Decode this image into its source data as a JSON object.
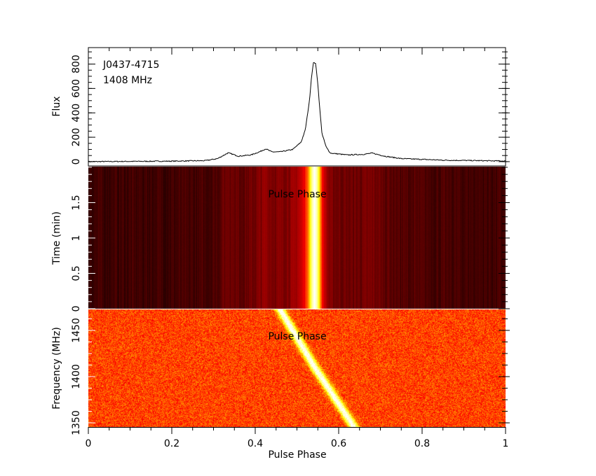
{
  "chart_data": [
    {
      "type": "line",
      "panel": "profile",
      "title": "J0437-4715",
      "subtitle": "1408 MHz",
      "xlabel": "Pulse Phase",
      "ylabel": "Flux",
      "xlim": [
        0,
        1
      ],
      "ylim": [
        -35,
        935
      ],
      "yticks": [
        "0",
        "200",
        "400",
        "600",
        "800"
      ],
      "ytick_values": [
        0,
        200,
        400,
        600,
        800
      ],
      "x": [
        0,
        0.1,
        0.2,
        0.28,
        0.31,
        0.335,
        0.36,
        0.39,
        0.41,
        0.425,
        0.44,
        0.46,
        0.49,
        0.51,
        0.52,
        0.53,
        0.535,
        0.54,
        0.545,
        0.55,
        0.555,
        0.56,
        0.57,
        0.58,
        0.62,
        0.66,
        0.68,
        0.71,
        0.75,
        0.85,
        1.0
      ],
      "y": [
        0,
        2,
        4,
        8,
        25,
        72,
        45,
        55,
        80,
        105,
        80,
        80,
        100,
        160,
        260,
        500,
        700,
        820,
        800,
        640,
        420,
        230,
        120,
        70,
        55,
        60,
        70,
        45,
        25,
        12,
        5
      ]
    },
    {
      "type": "heatmap",
      "panel": "time-phase",
      "xlabel": "Pulse Phase",
      "ylabel": "Time (min)",
      "overlay_label": "Pulse Phase",
      "xlim": [
        0,
        1
      ],
      "ylim": [
        0,
        2.01
      ],
      "yticks": [
        "0",
        "0.5",
        "1",
        "1.5"
      ],
      "ytick_values": [
        0,
        0.5,
        1,
        1.5
      ],
      "colormap": "heat"
    },
    {
      "type": "heatmap",
      "panel": "frequency-phase",
      "xlabel": "Pulse Phase",
      "ylabel": "Frequency (MHz)",
      "overlay_label": "Pulse Phase",
      "xlim": [
        0,
        1
      ],
      "ylim": [
        1345.5,
        1472.7
      ],
      "yticks": [
        "1350",
        "1400",
        "1450"
      ],
      "ytick_values": [
        1350,
        1400,
        1450
      ],
      "xticks": [
        "0",
        "0.2",
        "0.4",
        "0.6",
        "0.8",
        "1"
      ],
      "xtick_values": [
        0,
        0.2,
        0.4,
        0.6,
        0.8,
        1
      ],
      "dispersion_track": {
        "freq": [
          1472,
          1408,
          1350
        ],
        "phase": [
          0.46,
          0.545,
          0.63
        ]
      },
      "colormap": "heat"
    }
  ]
}
